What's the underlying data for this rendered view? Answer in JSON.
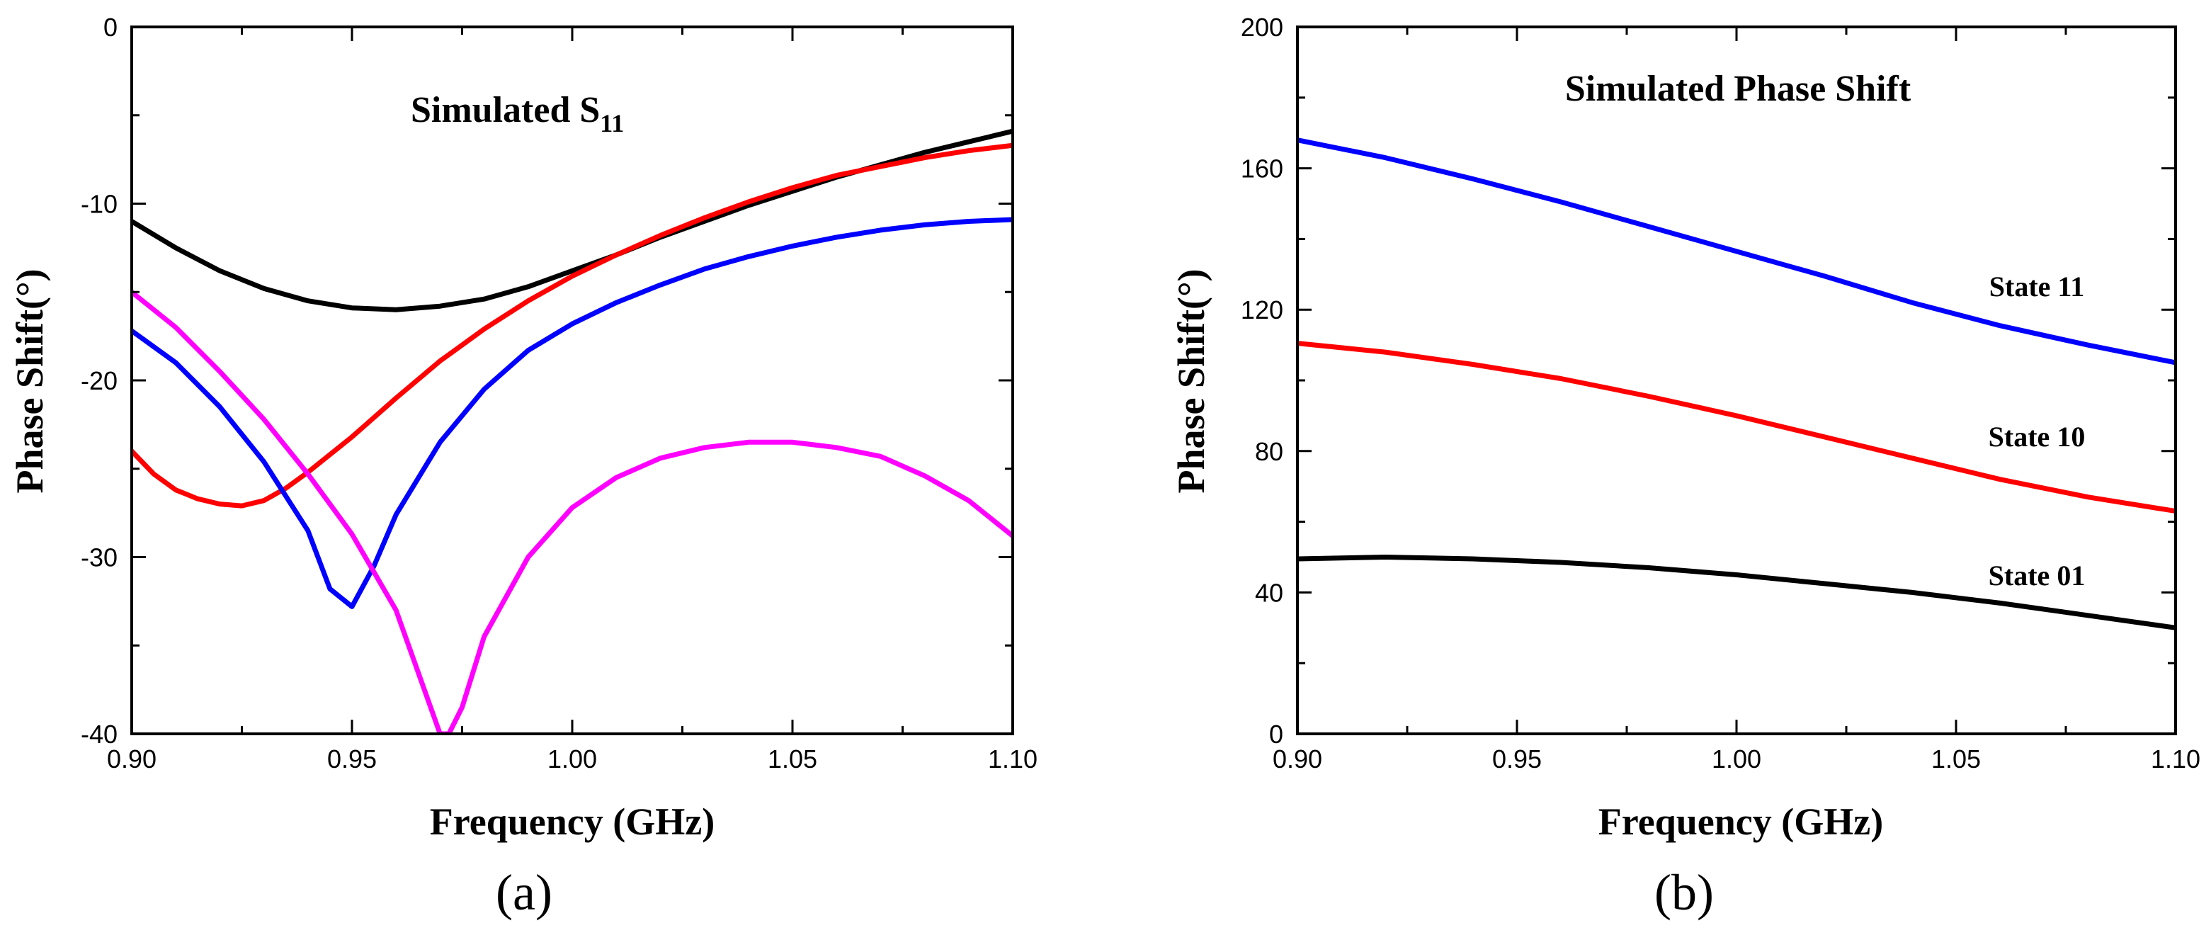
{
  "chart_data": [
    {
      "type": "line",
      "panel_label": "(a)",
      "title": "Simulated S",
      "title_subscript": "11",
      "xlabel": "Frequency (GHz)",
      "ylabel": "Phase Shift(°)",
      "xlim": [
        0.9,
        1.1
      ],
      "ylim": [
        -40,
        0
      ],
      "xticks": [
        0.9,
        0.95,
        1.0,
        1.05,
        1.1
      ],
      "xtick_labels": [
        "0.90",
        "0.95",
        "1.00",
        "1.05",
        "1.10"
      ],
      "yticks": [
        -40,
        -30,
        -20,
        -10,
        0
      ],
      "ytick_labels": [
        "-40",
        "-30",
        "-20",
        "-10",
        "0"
      ],
      "grid": false,
      "series": [
        {
          "color": "#000000",
          "x": [
            0.9,
            0.91,
            0.92,
            0.93,
            0.94,
            0.95,
            0.96,
            0.97,
            0.98,
            0.99,
            1.0,
            1.01,
            1.02,
            1.03,
            1.04,
            1.05,
            1.06,
            1.07,
            1.08,
            1.09,
            1.1
          ],
          "y": [
            -11.0,
            -12.5,
            -13.8,
            -14.8,
            -15.5,
            -15.9,
            -16.0,
            -15.8,
            -15.4,
            -14.7,
            -13.8,
            -12.9,
            -11.9,
            -11.0,
            -10.1,
            -9.3,
            -8.5,
            -7.8,
            -7.1,
            -6.5,
            -5.9
          ]
        },
        {
          "color": "#ff0000",
          "x": [
            0.9,
            0.905,
            0.91,
            0.915,
            0.92,
            0.925,
            0.93,
            0.935,
            0.94,
            0.95,
            0.96,
            0.97,
            0.98,
            0.99,
            1.0,
            1.01,
            1.02,
            1.03,
            1.04,
            1.05,
            1.06,
            1.07,
            1.08,
            1.09,
            1.1
          ],
          "y": [
            -24.0,
            -25.3,
            -26.2,
            -26.7,
            -27.0,
            -27.1,
            -26.8,
            -26.1,
            -25.2,
            -23.2,
            -21.0,
            -18.9,
            -17.1,
            -15.5,
            -14.1,
            -12.9,
            -11.8,
            -10.8,
            -9.9,
            -9.1,
            -8.4,
            -7.9,
            -7.4,
            -7.0,
            -6.7
          ]
        },
        {
          "color": "#0000ff",
          "x": [
            0.9,
            0.91,
            0.92,
            0.93,
            0.94,
            0.945,
            0.95,
            0.955,
            0.96,
            0.97,
            0.98,
            0.99,
            1.0,
            1.01,
            1.02,
            1.03,
            1.04,
            1.05,
            1.06,
            1.07,
            1.08,
            1.09,
            1.1
          ],
          "y": [
            -17.2,
            -19.0,
            -21.5,
            -24.6,
            -28.5,
            -31.8,
            -32.8,
            -30.5,
            -27.6,
            -23.5,
            -20.5,
            -18.3,
            -16.8,
            -15.6,
            -14.6,
            -13.7,
            -13.0,
            -12.4,
            -11.9,
            -11.5,
            -11.2,
            -11.0,
            -10.9
          ]
        },
        {
          "color": "#ff00ff",
          "x": [
            0.9,
            0.91,
            0.92,
            0.93,
            0.94,
            0.95,
            0.96,
            0.965,
            0.97,
            0.972,
            0.975,
            0.98,
            0.99,
            1.0,
            1.01,
            1.02,
            1.03,
            1.04,
            1.05,
            1.06,
            1.07,
            1.08,
            1.09,
            1.1
          ],
          "y": [
            -15.0,
            -17.0,
            -19.5,
            -22.2,
            -25.3,
            -28.7,
            -33.0,
            -36.5,
            -40.0,
            -40.0,
            -38.5,
            -34.5,
            -30.0,
            -27.2,
            -25.5,
            -24.4,
            -23.8,
            -23.5,
            -23.5,
            -23.8,
            -24.3,
            -25.4,
            -26.8,
            -28.8
          ]
        }
      ]
    },
    {
      "type": "line",
      "panel_label": "(b)",
      "title": "Simulated Phase Shift",
      "xlabel": "Frequency (GHz)",
      "ylabel": "Phase Shift(°)",
      "xlim": [
        0.9,
        1.1
      ],
      "ylim": [
        0,
        200
      ],
      "xticks": [
        0.9,
        0.95,
        1.0,
        1.05,
        1.1
      ],
      "xtick_labels": [
        "0.90",
        "0.95",
        "1.00",
        "1.05",
        "1.10"
      ],
      "yticks": [
        0,
        40,
        80,
        120,
        160,
        200
      ],
      "ytick_labels": [
        "0",
        "40",
        "80",
        "120",
        "160",
        "200"
      ],
      "grid": false,
      "series": [
        {
          "name": "State 11",
          "color": "#0000ff",
          "x": [
            0.9,
            0.92,
            0.94,
            0.96,
            0.98,
            1.0,
            1.02,
            1.04,
            1.06,
            1.08,
            1.1
          ],
          "y": [
            168,
            163,
            157,
            150.5,
            143.5,
            136.5,
            129.5,
            122,
            115.5,
            110,
            105
          ]
        },
        {
          "name": "State 10",
          "color": "#ff0000",
          "x": [
            0.9,
            0.92,
            0.94,
            0.96,
            0.98,
            1.0,
            1.02,
            1.04,
            1.06,
            1.08,
            1.1
          ],
          "y": [
            110.5,
            108,
            104.5,
            100.5,
            95.5,
            90,
            84,
            78,
            72,
            67,
            63
          ]
        },
        {
          "name": "State 01",
          "color": "#000000",
          "x": [
            0.9,
            0.92,
            0.94,
            0.96,
            0.98,
            1.0,
            1.02,
            1.04,
            1.06,
            1.08,
            1.1
          ],
          "y": [
            49.5,
            50,
            49.5,
            48.5,
            47,
            45,
            42.5,
            40,
            37,
            33.5,
            30
          ]
        }
      ],
      "annotations": [
        "State 11",
        "State 10",
        "State 01"
      ]
    }
  ]
}
